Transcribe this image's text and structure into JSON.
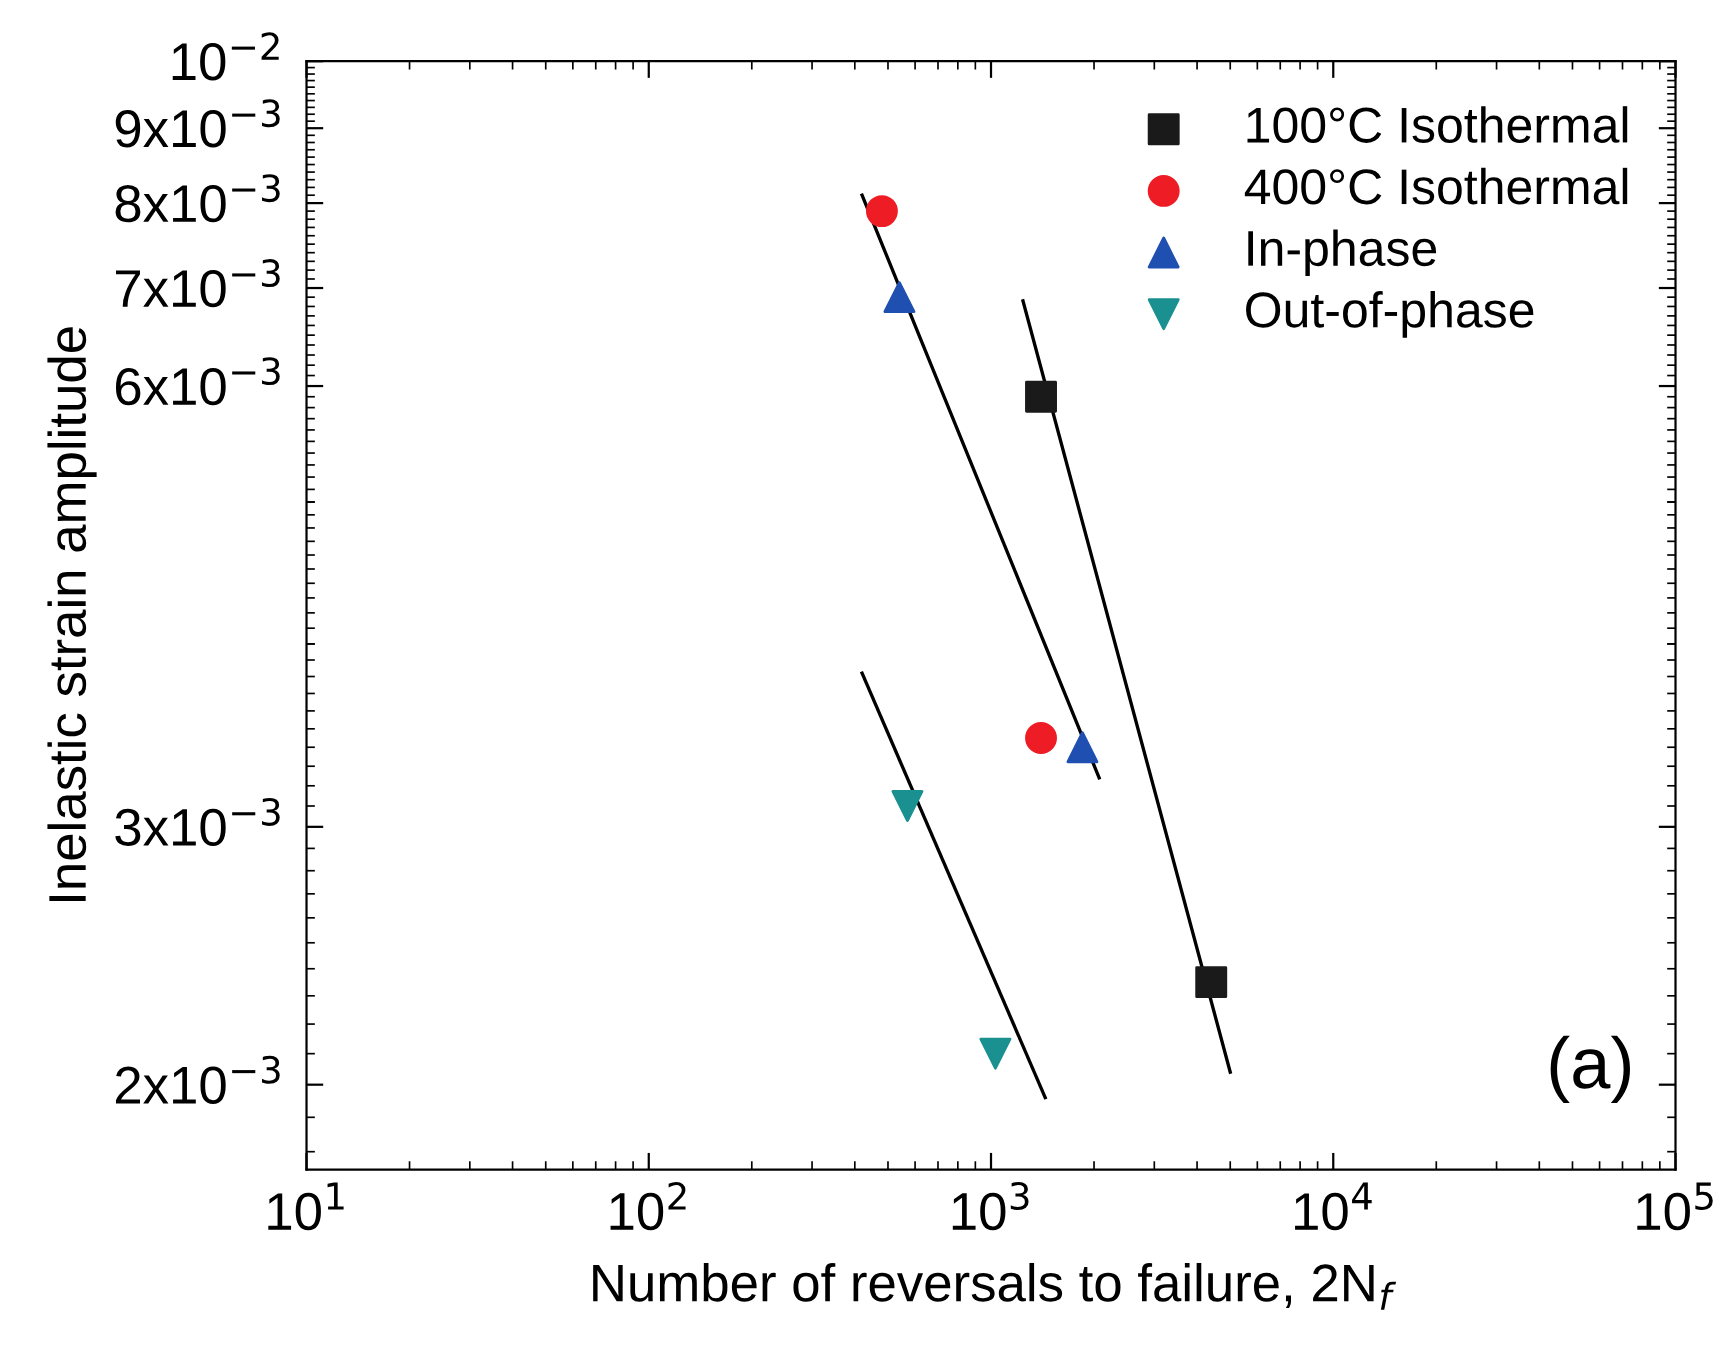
{
  "chart_data": {
    "type": "scatter",
    "xlabel": "Number of reversals to failure, 2N$_{f}$",
    "ylabel": "Inelastic strain amplitude",
    "log": "xy",
    "xlim": [
      10,
      100000
    ],
    "ylim": [
      0.00175,
      0.01
    ],
    "xticks": [
      {
        "value": 10,
        "label": "10$^{1}$"
      },
      {
        "value": 100,
        "label": "10$^{2}$"
      },
      {
        "value": 1000,
        "label": "10$^{3}$"
      },
      {
        "value": 10000,
        "label": "10$^{4}$"
      },
      {
        "value": 100000,
        "label": "10$^{5}$"
      }
    ],
    "yticks": [
      {
        "value": 0.002,
        "label": "2x10$^{−3}$"
      },
      {
        "value": 0.003,
        "label": "3x10$^{−3}$"
      },
      {
        "value": 0.006,
        "label": "6x10$^{−3}$"
      },
      {
        "value": 0.007,
        "label": "7x10$^{−3}$"
      },
      {
        "value": 0.008,
        "label": "8x10$^{−3}$"
      },
      {
        "value": 0.009,
        "label": "9x10$^{−3}$"
      },
      {
        "value": 0.01,
        "label": "10$^{−2}$"
      }
    ],
    "legend": "top right",
    "grid": false,
    "annotations": [
      "(a)"
    ],
    "series": [
      {
        "name": "100°C Isothermal",
        "color": "#1a1a1a",
        "marker": "square",
        "x": [
          1400,
          4400
        ],
        "values": [
          0.0059,
          0.00235
        ]
      },
      {
        "name": "400°C Isothermal",
        "color": "#ee1c25",
        "marker": "circle",
        "x": [
          480,
          1400
        ],
        "values": [
          0.0079,
          0.00345
        ]
      },
      {
        "name": "In-phase",
        "color": "#1f4fb0",
        "marker": "triangle",
        "x": [
          540,
          1850
        ],
        "values": [
          0.0069,
          0.0034
        ]
      },
      {
        "name": "Out-of-phase",
        "color": "#1a9090",
        "marker": "triangle_down",
        "x": [
          570,
          1030
        ],
        "values": [
          0.0031,
          0.0021
        ]
      },
      {
        "type": "line",
        "color": "#000000",
        "x": [
          420,
          2070
        ],
        "values": [
          0.0081,
          0.00324
        ]
      },
      {
        "type": "line",
        "color": "#000000",
        "x": [
          1240,
          5000
        ],
        "values": [
          0.00686,
          0.00204
        ]
      },
      {
        "type": "line",
        "color": "#000000",
        "x": [
          420,
          1440
        ],
        "values": [
          0.00382,
          0.00196
        ]
      }
    ]
  }
}
